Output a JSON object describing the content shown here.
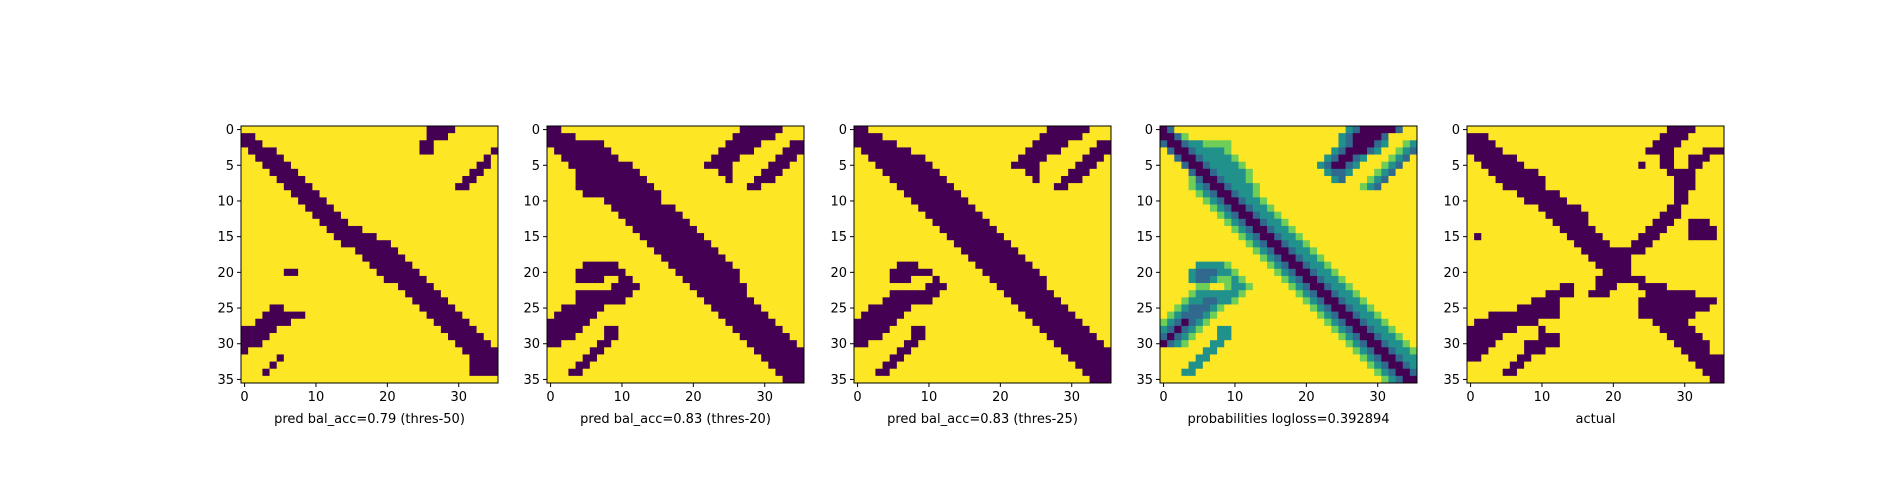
{
  "figure": {
    "background": "#ffffff"
  },
  "colormap": {
    "name": "viridis",
    "low": "#440154",
    "mid": "#21918c",
    "high": "#fde725"
  },
  "chart_data": [
    {
      "type": "heatmap",
      "title": "",
      "xlabel": "pred bal_acc=0.79 (thres-50)",
      "ylabel": "",
      "grid": false,
      "size": 36,
      "xticks": [
        0,
        10,
        20,
        30
      ],
      "yticks": [
        0,
        5,
        10,
        15,
        20,
        25,
        30,
        35
      ],
      "values": [
        "YYYYYYYYYYYYYYYYYYYYYYYYYYPPPPYYYYYY",
        "PPYYYYYYYYYYYYYYYYYYYYYYYYPPPYYYYYYY",
        "PPPYYYYYYYYYYYYYYYYYYYYYYPPYYYYYYYYY",
        "YPPPPYYYYYYYYYYYYYYYYYYYYPPYYYYYYYYP",
        "YYPPPPYYYYYYYYYYYYYYYYYYYYYYYYYYYYPY",
        "YYYPPPPYYYYYYYYYYYYYYYYYYYYYYYYYYPPY",
        "YYYYPPPPYYYYYYYYYYYYYYYYYYYYYYYYPPYY",
        "YYYYYPPPPYYYYYYYYYYYYYYYYYYYYYYPPYYY",
        "YYYYYYPPPPYYYYYYYYYYYYYYYYYYYYPPYYYY",
        "YYYYYYYPPPPYYYYYYYYYYYYYYYYYYYYYYYYY",
        "YYYYYYYYPPPPYYYYYYYYYYYYYYYYYYYYYYYY",
        "YYYYYYYYYPPPPYYYYYYYYYYYYYYYYYYYYYYY",
        "YYYYYYYYYYPPPPYYYYYYYYYYYYYYYYYYYYYY",
        "YYYYYYYYYYYPPPPYYYYYYYYYYYYYYYYYYYYY",
        "YYYYYYYYYYYYPPPPPYYYYYYYYYYYYYYYYYYY",
        "YYYYYYYYYYYYYPPPPPPYYYYYYYYYYYYYYYYY",
        "YYYYYYYYYYYYYYPPPPPPPYYYYYYYYYYYYYYY",
        "YYYYYYYYYYYYYYYYPPPPPPYYYYYYYYYYYYYY",
        "YYYYYYYYYYYYYYYYYPPPPPPYYYYYYYYYYYYY",
        "YYYYYYYYYYYYYYYYYYPPPPPPYYYYYYYYYYYY",
        "YYYYYYPPYYYYYYYYYYYPPPPPPYYYYYYYYYYY",
        "YYYYYYYYYYYYYYYYYYYYPPPPPPYYYYYYYYYY",
        "YYYYYYYYYYYYYYYYYYYYYYPPPPPYYYYYYYYY",
        "YYYYYYYYYYYYYYYYYYYYYYYPPPPPYYYYYYYY",
        "YYYYYYYYYYYYYYYYYYYYYYYYPPPPPYYYYYYY",
        "YYYYPPYYYYYYYYYYYYYYYYYYYPPPPPYYYYYY",
        "YYYPPPPPPYYYYYYYYYYYYYYYYYPPPPPYYYYY",
        "YYPPPPPYYYYYYYYYYYYYYYYYYYYPPPPPYYYY",
        "PPPPPYYYYYYYYYYYYYYYYYYYYYYYPPPPPYYY",
        "PPPPYYYYYYYYYYYYYYYYYYYYYYYYYPPPPPYY",
        "PPPYYYYYYYYYYYYYYYYYYYYYYYYYYYPPPPPY",
        "PYYYYYYYYYYYYYYYYYYYYYYYYYYYYYYPPPPP",
        "YYYYYPYYYYYYYYYYYYYYYYYYYYYYYYYYPPPP",
        "YYYYPYYYYYYYYYYYYYYYYYYYYYYYYYYYPPPP",
        "YYYPYYYYYYYYYYYYYYYYYYYYYYYYYYYYPPPP",
        "YYYYYYYYYYYYYYYYYYYYYYYYYYYYYYYYYYYY"
      ]
    },
    {
      "type": "heatmap",
      "title": "",
      "xlabel": "pred bal_acc=0.83 (thres-20)",
      "ylabel": "",
      "grid": false,
      "size": 36,
      "xticks": [
        0,
        10,
        20,
        30
      ],
      "yticks": [
        0,
        5,
        10,
        15,
        20,
        25,
        30,
        35
      ],
      "values": [
        "PPYYYYYYYYYYYYYYYYYYYYYYYYYPPPPPPYYY",
        "PPPPYYYYYYYYYYYYYYYYYYYYYYPPPPPPYYYY",
        "PPPPPPPPYYYYYYYYYYYYYYYYYPPPPPYYYYPP",
        "YPPPPPPPPYYYYYYYYYYYYYYYPPPPPYYYYPPP",
        "YYPPPPPPPPYYYYYYYYYYYYYPPPPYYYYYPPPY",
        "YYYPPPPPPPPPYYYYYYYYYYPPPPYYYYYPPPYY",
        "YYYYPPPPPPPPPYYYYYYYYYYYPPYYYYPPPYYY",
        "YYYYPPPPPPPPPPYYYYYYYYYYYPYYYPPPYYYY",
        "YYYYPPPPPPPPPPPYYYYYYYYYYYYYPPYYYYYY",
        "YYYYYPPPPPPPPPPPYYYYYYYYYYYYYYYYYYYY",
        "YYYYYYYYPPPPPPPPYYYYYYYYYYYYYYYYYYYY",
        "YYYYYYYYYPPPPPPPPPYYYYYYYYYYYYYYYYYY",
        "YYYYYYYYYYPPPPPPPPPYYYYYYYYYYYYYYYYY",
        "YYYYYYYYYYYPPPPPPPPPYYYYYYYYYYYYYYYY",
        "YYYYYYYYYYYYPPPPPPPPPYYYYYYYYYYYYYYY",
        "YYYYYYYYYYYYYPPPPPPPPPYYYYYYYYYYYYYY",
        "YYYYYYYYYYYYYYPPPPPPPPPYYYYYYYYYYYYY",
        "YYYYYYYYYYYYYYYPPPPPPPPPYYYYYYYYYYYY",
        "YYYYYYYYYYYYYYYYPPPPPPPPPYYYYYYYYYYY",
        "YYYYYPPPPPYYYYYYYPPPPPPPPPYYYYYYYYYY",
        "YYYYPPPPPPPYYYYYYYPPPPPPPPPYYYYYYYYY",
        "YYYYPPPPYYPPYYYYYYYPPPPPPPPYYYYYYYYY",
        "YYYYYYYYYPPPPYYYYYYYPPPPPPPPYYYYYYYY",
        "YYYYPPPPPPPPYYYYYYYYYPPPPPPPYYYYYYYY",
        "YYYYPPPPPPPYYYYYYYYYYYPPPPPPPYYYYYYY",
        "YYPPPPPPYYYYYYYYYYYYYYYPPPPPPPYYYYYY",
        "YPPPPPPYYYYYYYYYYYYYYYYYPPPPPPPYYYYY",
        "PPPPPPYYYYYYYYYYYYYYYYYYYPPPPPPPYYYY",
        "PPPPPYYYPPYYYYYYYYYYYYYYYYPPPPPPPYYY",
        "PPPPYYYYPPYYYYYYYYYYYYYYYYYPPPPPPPYY",
        "PPYYYYYPPYYYYYYYYYYYYYYYYYYYPPPPPPPY",
        "YYYYYYPPYYYYYYYYYYYYYYYYYYYYYPPPPPPP",
        "YYYYYPPYYYYYYYYYYYYYYYYYYYYYYYPPPPPP",
        "YYYYPPYYYYYYYYYYYYYYYYYYYYYYYYYPPPPP",
        "YYYPPYYYYYYYYYYYYYYYYYYYYYYYYYYYPPPP",
        "YYYYYYYYYYYYYYYYYYYYYYYYYYYYYYYYYPPP"
      ]
    },
    {
      "type": "heatmap",
      "title": "",
      "xlabel": "pred bal_acc=0.83 (thres-25)",
      "ylabel": "",
      "grid": false,
      "size": 36,
      "xticks": [
        0,
        10,
        20,
        30
      ],
      "yticks": [
        0,
        5,
        10,
        15,
        20,
        25,
        30,
        35
      ],
      "values": [
        "PPYYYYYYYYYYYYYYYYYYYYYYYYYPPPPPPYYY",
        "PPPPYYYYYYYYYYYYYYYYYYYYYYPPPPPPYYYY",
        "PPPPPPYYYYYYYYYYYYYYYYYYYPPPPPYYYYPP",
        "YPPPPPPPYYYYYYYYYYYYYYYYPPPPPYYYYPPP",
        "YYPPPPPPPPYYYYYYYYYYYYYPPPPYYYYYPPPY",
        "YYYPPPPPPPPYYYYYYYYYYYPPPPYYYYYPPPYY",
        "YYYYPPPPPPPPYYYYYYYYYYYYPPYYYYPPPYYY",
        "YYYYYPPPPPPPPYYYYYYYYYYYYPYYYPPPYYYY",
        "YYYYYYPPPPPPPPYYYYYYYYYYYYYYPPYYYYYY",
        "YYYYYYYPPPPPPPPYYYYYYYYYYYYYYYYYYYYY",
        "YYYYYYYYPPPPPPPPYYYYYYYYYYYYYYYYYYYY",
        "YYYYYYYYYPPPPPPPPYYYYYYYYYYYYYYYYYYY",
        "YYYYYYYYYYPPPPPPPPYYYYYYYYYYYYYYYYYY",
        "YYYYYYYYYYYPPPPPPPPYYYYYYYYYYYYYYYYY",
        "YYYYYYYYYYYYPPPPPPPPYYYYYYYYYYYYYYYY",
        "YYYYYYYYYYYYYPPPPPPPPYYYYYYYYYYYYYYY",
        "YYYYYYYYYYYYYYPPPPPPPPYYYYYYYYYYYYYY",
        "YYYYYYYYYYYYYYYPPPPPPPPYYYYYYYYYYYYY",
        "YYYYYYYYYYYYYYYYPPPPPPPPYYYYYYYYYYYY",
        "YYYYYYPPPYYYYYYYYPPPPPPPPYYYYYYYYYYY",
        "YYYYYPPPPPPYYYYYYYPPPPPPPPYYYYYYYYYY",
        "YYYYYPPPYYYPYYYYYYYPPPPPPPPYYYYYYYYY",
        "YYYYYYYYYYPPPYYYYYYYPPPPPPPYYYYYYYYY",
        "YYYYYPPPPPPPYYYYYYYYYPPPPPPPYYYYYYYY",
        "YYYYPPPPPPPYYYYYYYYYYYPPPPPPPYYYYYYY",
        "YYPPPPPPYYYYYYYYYYYYYYYPPPPPPPYYYYYY",
        "YPPPPPPYYYYYYYYYYYYYYYYYPPPPPPPYYYYY",
        "PPPPPPYYYYYYYYYYYYYYYYYYYPPPPPPPYYYY",
        "PPPPPYYYPPYYYYYYYYYYYYYYYYPPPPPPPYYY",
        "PPPPYYYYPPYYYYYYYYYYYYYYYYYPPPPPPPYY",
        "PPYYYYYPPYYYYYYYYYYYYYYYYYYYPPPPPPPY",
        "YYYYYYPPYYYYYYYYYYYYYYYYYYYYYPPPPPPP",
        "YYYYYPPYYYYYYYYYYYYYYYYYYYYYYYPPPPPP",
        "YYYYPPYYYYYYYYYYYYYYYYYYYYYYYYYPPPPP",
        "YYYPPYYYYYYYYYYYYYYYYYYYYYYYYYYYPPPP",
        "YYYYYYYYYYYYYYYYYYYYYYYYYYYYYYYYYPPP"
      ]
    },
    {
      "type": "heatmap",
      "title": "",
      "xlabel": "probabilities logloss=0.392894",
      "ylabel": "",
      "grid": false,
      "size": 36,
      "xticks": [
        0,
        10,
        20,
        30
      ],
      "yticks": [
        0,
        5,
        10,
        15,
        20,
        25,
        30,
        35
      ],
      "values": [
        "PBYYYYYYYYYYYYYYYYYYYYYYYYGBPPPPPBYY",
        "PPBLYYYYYYYYYYYYYYYYYYYYYGBPPPPBYYYY",
        "BPPBGGLLLLYYYYYYYYYYYYYYYGBPPPBGYYLG",
        "YBPPBGGGGLYYYYYYYYYYYYYYGBPPPBGYYLGB",
        "YYBPPBGGGGLYYYYYYYYYYYYGBPPBGYYYLGBY",
        "YYYBPPBGGGGLYYYYYYYYYYGBPPBGYYYLGBYY",
        "YYYYBPPBGGGGLYYYYYYYYYYGBBGYYYLGBYYY",
        "YYYYLBPPBGGGLYYYYYYYYYYYGBYYYLGBYYYY",
        "YYYYLGBPPBGGGLYYYYYYYYYYYYYYLGBYYYYY",
        "YYYYYLGBPPBGGLYYYYYYYYYYYYYYYYYYYYYY",
        "YYYYYYLGBPPBGGLYYYYYYYYYYYYYYYYYYYYY",
        "YYYYYYYLGBPPBGGLYYYYYYYYYYYYYYYYYYYY",
        "YYYYYYYYLGBPPBGGLYYYYYYYYYYYYYYYYYYY",
        "YYYYYYYYYLGBPPBGGLYYYYYYYYYYYYYYYYYY",
        "YYYYYYYYYYLGBPPBGGLYYYYYYYYYYYYYYYYY",
        "YYYYYYYYYYYLGBPPBGGLYYYYYYYYYYYYYYYY",
        "YYYYYYYYYYYYLGBPPBGGLYYYYYYYYYYYYYYY",
        "YYYYYYYYYYYYYLGBPPBGGLYYYYYYYYYYYYYY",
        "YYYYYYYYYYYYYYLGBPPBGGLYYYYYYYYYYYYY",
        "YYYYYGGGGLYYYYYLGBPPBGGLYYYYYYYYYYYY",
        "YYYYGBBBGGLYYYYYLGBPPBGGLYYYYYYYYYYY",
        "YYYYGBBGLLGLYYYYYLGBPPBGGLYYYYYYYYYY",
        "YYYYYLLYYLGGLYYYYYLGBPPBGGLYYYYYYYYY",
        "YYYYLGGGGGGLYYYYYYYLGBPPBGGLYYYYYYYY",
        "YYYLGGBBGGLYYYYYYYYYLGBPPBGGLYYYYYYY",
        "YYLGBBBGLYYYYYYYYYYYYLGBPPBGGLYYYYYY",
        "YLGBBBGLYYYYYYYYYYYYYYLGBPPBGGLYYYYY",
        "LGBPBGLYYYYYYYYYYYYYYYYLGBPPBGGLYYYY",
        "GBPBGLYYGGYYYYYYYYYYYYYYLGBPPBGGLYYY",
        "BPBGLYYYGGYYYYYYYYYYYYYYYLGBPPBGGLYY",
        "PBGLYYYGGYYYYYYYYYYYYYYYYYLGBPPBGGLY",
        "YYYYYYGGYYYYYYYYYYYYYYYYYYYLGBPPBGGL",
        "YYYYYGGYYYYYYYYYYYYYYYYYYYYYLGBPPBGG",
        "YYYYGGYYYYYYYYYYYYYYYYYYYYYYYLGBPPBG",
        "YYYGGYYYYYYYYYYYYYYYYYYYYYYYYYLGBPPB",
        "YYYYYYYYYYYYYYYYYYYYYYYYYYYYYYYLGBPP"
      ]
    },
    {
      "type": "heatmap",
      "title": "",
      "xlabel": "actual",
      "ylabel": "",
      "grid": false,
      "size": 36,
      "xticks": [
        0,
        10,
        20,
        30
      ],
      "yticks": [
        0,
        5,
        10,
        15,
        20,
        25,
        30,
        35
      ],
      "values": [
        "YYYYYYYYYYYYYYYYYYYYYYYYYYYYPPPPYYYY",
        "PPPYYYYYYYYYYYYYYYYYYYYYYYYPPPPYYYYY",
        "PPPPYYYYYYYYYYYYYYYYYYYYYYPPPPYYYYYY",
        "PPPPPYYYYYYYYYYYYYYYYYYYYPPPPYYYYPPP",
        "YPPPPPPYYYYYYYYYYYYYYYYYYYYPPYYPPPYY",
        "YYPPPPPPYYYYYYYYYYYYYYYYPYYPPYYPPYYY",
        "YYYPPPPPPPYYYYYYYYYYYYYYYYYYPPPPYYYY",
        "YYYYPPPPPPPYYYYYYYYYYYYYYYYYYPPPYYYY",
        "YYYYYPPPPPPYYYYYYYYYYYYYYYYYYPPPYYYY",
        "YYYYYYYPPPPPPYYYYYYYYYYYYYYYYPPYYYYY",
        "YYYYYYYYPPPPPPYYYYYYYYYYYYYYYPPYYYYY",
        "YYYYYYYYYYPPPPPPYYYYYYYYYYYYPPYYYYYY",
        "YYYYYYYYYYYPPPPPPYYYYYYYYYYPPPYYYYYY",
        "YYYYYYYYYYYYPPPPPYYYYYYYYYPPPYYPPPYY",
        "YYYYYYYYYYYYYPPPPPYYYYYYYPPPYYYPPPPY",
        "YPYYYYYYYYYYYYPPPPPYYYYYPPPYYYYPPPPY",
        "YYYYYYYYYYYYYYYPPPPPYYYPPPYYYYYYYYYY",
        "YYYYYYYYYYYYYYYYPPPPPPPPPYYYYYYYYYYY",
        "YYYYYYYYYYYYYYYYYPPPPPPYYYYYYYYYYYYY",
        "YYYYYYYYYYYYYYYYYYPPPPPYYYYYYYYYYYYY",
        "YYYYYYYYYYYYYYYYYYYPPPPYYYYYYYYYYYYY",
        "YYYYYYYYYYYYYYYYYYPPPPPPPYYYYYYYYYYY",
        "YYYYYYYYYYYYYPPYYYPPPYYYPPPPYYYYYYYY",
        "YYYYYYYYYYYPPPPYYPPPYYYYYPPPPPPPYYYY",
        "YYYYYYYYYPPPPYYYYYYYYYYYPPPPPPPPPPPY",
        "YYYYYYYPPPPPPYYYYYYYYYYYPPPPPPPPPPYY",
        "YYYPPPPPPPPPPYYYYYYYYYYYPPPPPPPPYYYY",
        "YPPPPPPPPPYYYYYYYYYYYYYYYYPPPPPYYYYY",
        "PPPPPPPYYYPYYYYYYYYYYYYYYYYPPPPPYYYY",
        "PPPPPYYYYYPPPYYYYYYYYYYYYYYYPPPPPYYY",
        "PPPPYYYYPPPPPYYYYYYYYYYYYYYYYPPPPPYY",
        "PPPYYYYYPPPYYYYYYYYYYYYYYYYYYYPPPPYY",
        "PPYYYYYPPYYYYYYYYYYYYYYYYYYYYYYPPPPP",
        "YYYYYYPPYYYYYYYYYYYYYYYYYYYYYYYYPPPP",
        "YYYYYPPYYYYYYYYYYYYYYYYYYYYYYYYYYPPP",
        "YYYYYYYYYYYYYYYYYYYYYYYYYYYYYYYYYYPP"
      ]
    }
  ]
}
